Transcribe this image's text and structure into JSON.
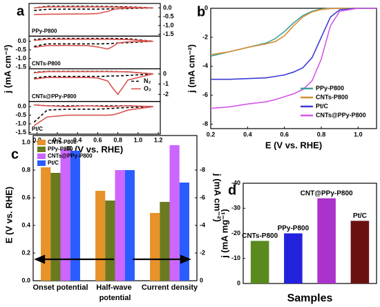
{
  "chart_data": [
    {
      "type": "cv",
      "panel_label": "a",
      "x_label": "E (V vs. RHE)",
      "y_label": "j (mA cm⁻²)",
      "xlim": [
        -0.08,
        1.22
      ],
      "xticks": [
        {
          "value": 0,
          "label": "0.0"
        },
        0.2,
        0.4,
        0.6,
        0.8,
        {
          "value": 1,
          "label": "1.0"
        },
        1.2
      ],
      "subplots": [
        {
          "label": "PPy-P800",
          "axis_side": "right",
          "ylim": [
            -1.6,
            0.25
          ],
          "yticks": [
            {
              "value": 0,
              "label": "0.0"
            },
            -0.5,
            {
              "value": -1,
              "label": "-1.0"
            },
            -1.5
          ],
          "x": [
            -0.03,
            0.1,
            0.3,
            0.5,
            0.6,
            0.7,
            0.75,
            0.8,
            0.9,
            1.15,
            0.9,
            0.7,
            0.5,
            0.3,
            0.1,
            -0.03
          ],
          "series": [
            {
              "name": "N₂",
              "color": "#000000",
              "dashed": true,
              "values": [
                -0.15,
                -0.08,
                -0.07,
                -0.07,
                -0.07,
                -0.06,
                -0.05,
                -0.05,
                -0.04,
                0.0,
                0.06,
                0.08,
                0.09,
                0.09,
                0.09,
                0.0
              ]
            },
            {
              "name": "O₂",
              "color": "#d9534f",
              "dashed": false,
              "values": [
                -0.38,
                -0.36,
                -0.35,
                -0.34,
                -0.32,
                -0.2,
                -0.1,
                -0.04,
                -0.01,
                0.0,
                0.03,
                0.05,
                0.06,
                0.06,
                0.06,
                0.0
              ]
            }
          ]
        },
        {
          "label": "CNTs-P800",
          "axis_side": "left",
          "ylim": [
            -1.6,
            0.3
          ],
          "yticks": [
            {
              "value": 0,
              "label": "0.0"
            },
            -0.5,
            {
              "value": -1,
              "label": "-1.0"
            },
            -1.5
          ],
          "x": [
            -0.03,
            0.1,
            0.3,
            0.5,
            0.6,
            0.7,
            0.75,
            0.8,
            0.9,
            1.15,
            0.9,
            0.7,
            0.5,
            0.3,
            0.1,
            -0.03
          ],
          "series": [
            {
              "name": "N₂",
              "color": "#000000",
              "dashed": true,
              "values": [
                -0.3,
                -0.15,
                -0.15,
                -0.15,
                -0.15,
                -0.14,
                -0.12,
                -0.1,
                -0.08,
                0.0,
                0.15,
                0.17,
                0.17,
                0.17,
                0.17,
                0.1
              ]
            },
            {
              "name": "O₂",
              "color": "#d9534f",
              "dashed": false,
              "values": [
                -0.35,
                -0.25,
                -0.24,
                -0.25,
                -0.33,
                -0.45,
                -0.3,
                -0.1,
                -0.03,
                0.0,
                0.1,
                0.12,
                0.12,
                0.12,
                0.12,
                0.05
              ]
            }
          ]
        },
        {
          "label": "CNTs@PPy-P800",
          "axis_side": "right",
          "ylim": [
            -2.7,
            0.5
          ],
          "legend": true,
          "yticks": [
            0,
            -1,
            -2
          ],
          "x": [
            -0.03,
            0.1,
            0.3,
            0.5,
            0.6,
            0.7,
            0.75,
            0.8,
            0.9,
            1.15,
            0.9,
            0.7,
            0.5,
            0.3,
            0.1,
            -0.03
          ],
          "series": [
            {
              "name": "N₂",
              "color": "#000000",
              "dashed": true,
              "values": [
                -0.4,
                -0.25,
                -0.25,
                -0.25,
                -0.25,
                -0.22,
                -0.2,
                -0.2,
                -0.15,
                0.0,
                0.2,
                0.25,
                0.25,
                0.25,
                0.25,
                0.15
              ]
            },
            {
              "name": "O₂",
              "color": "#d9534f",
              "dashed": false,
              "values": [
                -0.5,
                -0.35,
                -0.35,
                -0.35,
                -0.4,
                -0.7,
                -1.4,
                -2.0,
                -0.6,
                0.0,
                0.2,
                0.22,
                0.22,
                0.22,
                0.22,
                0.1
              ]
            }
          ]
        },
        {
          "label": "Pt/C",
          "axis_side": "left",
          "ylim": [
            -1.6,
            0.3
          ],
          "yticks": [
            {
              "value": 0,
              "label": "0.0"
            },
            -0.5,
            {
              "value": -1,
              "label": "-1.0"
            },
            -1.5
          ],
          "x": [
            -0.03,
            0.1,
            0.3,
            0.5,
            0.6,
            0.7,
            0.75,
            0.8,
            0.9,
            1.15,
            0.9,
            0.7,
            0.5,
            0.3,
            0.1,
            -0.03
          ],
          "series": [
            {
              "name": "N₂",
              "color": "#000000",
              "dashed": true,
              "values": [
                -0.9,
                -0.2,
                -0.15,
                -0.15,
                -0.15,
                -0.12,
                -0.1,
                -0.08,
                -0.05,
                0.0,
                0.05,
                0.05,
                0.05,
                0.05,
                0.05,
                0.1
              ]
            },
            {
              "name": "O₂",
              "color": "#d9534f",
              "dashed": false,
              "values": [
                -1.1,
                -0.6,
                -0.5,
                -0.5,
                -0.5,
                -0.5,
                -0.48,
                -0.4,
                -0.2,
                0.0,
                0.05,
                0.0,
                0.05,
                0.0,
                0.05,
                0.1
              ]
            }
          ]
        }
      ]
    },
    {
      "type": "line",
      "panel_label": "b",
      "x_label": "E (V vs. RHE)",
      "y_label": "j (mA cm⁻²)",
      "xlim": [
        0.2,
        1.1
      ],
      "xticks": [
        0.2,
        0.4,
        0.6,
        0.8,
        {
          "value": 1,
          "label": "1.0"
        }
      ],
      "ylim": [
        -8.3,
        0
      ],
      "yticks": [
        0,
        -2,
        -4,
        -6,
        -8
      ],
      "x": [
        0.2,
        0.3,
        0.4,
        0.5,
        0.55,
        0.6,
        0.65,
        0.7,
        0.75,
        0.8,
        0.85,
        0.9,
        1.0,
        1.1
      ],
      "series": [
        {
          "name": "PPy-P800",
          "color": "#3aa39a",
          "values": [
            -3.3,
            -3.0,
            -2.7,
            -2.4,
            -2.1,
            -1.6,
            -1.0,
            -0.5,
            -0.2,
            -0.05,
            0,
            0,
            0,
            0
          ]
        },
        {
          "name": "CNTs-P800",
          "color": "#d98b2b",
          "values": [
            -3.2,
            -3.0,
            -2.7,
            -2.45,
            -2.3,
            -1.9,
            -1.2,
            -0.6,
            -0.25,
            -0.08,
            -0.02,
            0,
            0,
            0
          ]
        },
        {
          "name": "Pt/C",
          "color": "#3a3ad6",
          "values": [
            -4.9,
            -4.9,
            -4.85,
            -4.8,
            -4.7,
            -4.6,
            -4.4,
            -4.1,
            -3.4,
            -2.0,
            -0.6,
            -0.1,
            0,
            0
          ]
        },
        {
          "name": "CNTs@PPy-P800",
          "color": "#d455e8",
          "values": [
            -6.9,
            -6.8,
            -6.6,
            -6.45,
            -6.3,
            -6.1,
            -5.9,
            -5.6,
            -5.0,
            -3.5,
            -1.2,
            -0.2,
            0,
            0
          ]
        }
      ]
    },
    {
      "type": "bar",
      "panel_label": "c",
      "y_label": "E (V vs. RHE)",
      "y2_label": "j (mA cm⁻²)",
      "categories": [
        "Onset potential",
        "Half-wave potential",
        "Current density"
      ],
      "category_axis": [
        "y",
        "y",
        "y2"
      ],
      "ylim": [
        0,
        1.05
      ],
      "yticks": [
        {
          "value": 0,
          "label": "0.0"
        },
        0.2,
        0.4,
        0.6,
        0.8,
        {
          "value": 1,
          "label": "1.0"
        }
      ],
      "y2lim": [
        0,
        -10.5
      ],
      "y2ticks": [
        0,
        -2,
        -4,
        -6,
        -8
      ],
      "series": [
        {
          "name": "CNTs-P800",
          "color": "#e8922a",
          "values": [
            0.82,
            0.65,
            -4.9
          ]
        },
        {
          "name": "PPy-P800",
          "color": "#6b7a1f",
          "values": [
            0.78,
            0.58,
            -5.7
          ]
        },
        {
          "name": "CNTs@PPy-P800",
          "color": "#cc66ff",
          "values": [
            0.95,
            0.8,
            -9.8
          ]
        },
        {
          "name": "Pt/C",
          "color": "#2a5cff",
          "values": [
            0.94,
            0.8,
            -7.1
          ]
        }
      ]
    },
    {
      "type": "bar",
      "panel_label": "d",
      "y_label": "j (mA mg⁻¹)",
      "x_label": "Samples",
      "categories": [
        "CNTs-P800",
        "PPy-P800",
        "CNT@PPy-P800",
        "Pt/C"
      ],
      "values": [
        -17,
        -20,
        -34,
        -25
      ],
      "colors": [
        "#5a8a1e",
        "#2222dd",
        "#aa33cc",
        "#6b1010"
      ],
      "ylim": [
        0,
        -40
      ],
      "yticks": [
        0,
        -10,
        -20,
        -30,
        -40
      ]
    }
  ]
}
